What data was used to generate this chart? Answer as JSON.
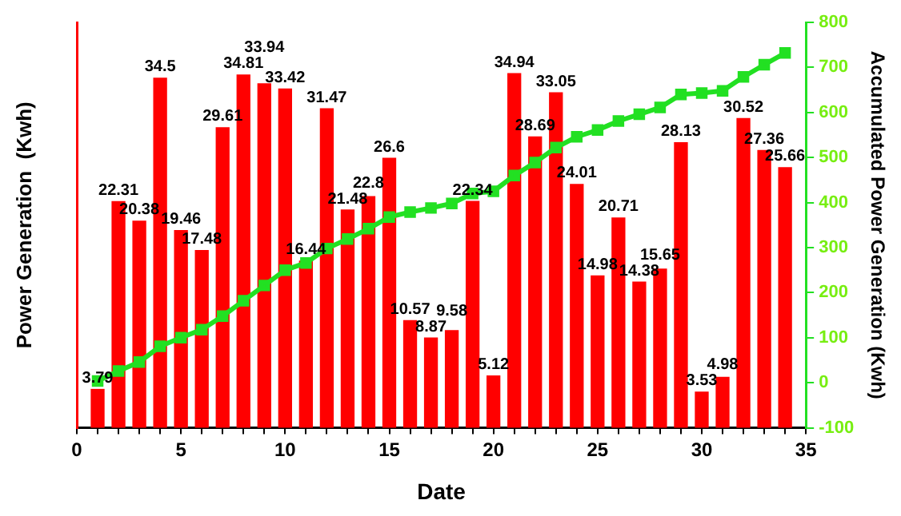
{
  "chart_data": {
    "type": "bar",
    "xlabel": "Date",
    "ylabel": "Power Generation  (Kwh)",
    "y2label": "Accumulated Power Generation (Kwh)",
    "x": [
      1,
      2,
      3,
      4,
      5,
      6,
      7,
      8,
      9,
      10,
      11,
      12,
      13,
      14,
      15,
      16,
      17,
      18,
      19,
      20,
      21,
      22,
      23,
      24,
      25,
      26,
      27,
      28,
      29,
      30,
      31,
      32,
      33,
      34
    ],
    "series": [
      {
        "color": "#ff0000",
        "values": [
          3.79,
          22.31,
          20.38,
          34.5,
          19.46,
          17.48,
          29.61,
          34.81,
          33.94,
          33.42,
          16.44,
          31.47,
          21.48,
          22.8,
          26.6,
          10.57,
          8.87,
          9.58,
          22.34,
          5.12,
          34.94,
          28.69,
          33.05,
          24.01,
          14.98,
          20.71,
          14.38,
          15.65,
          28.13,
          3.53,
          4.98,
          30.52,
          27.36,
          25.66
        ],
        "value_labels": [
          "3.79",
          "22.31",
          "20.38",
          "34.5",
          "19.46",
          "17.48",
          "29.61",
          "34.81",
          "33.94",
          "33.42",
          "16.44",
          "31.47",
          "21.48",
          "22.8",
          "26.6",
          "10.57",
          "8.87",
          "9.58",
          "22.34",
          "5.12",
          "34.94",
          "28.69",
          "33.05",
          "24.01",
          "14.98",
          "20.71",
          "14.38",
          "15.65",
          "28.13",
          "3.53",
          "4.98",
          "30.52",
          "27.36",
          "25.66"
        ]
      },
      {
        "type": "line",
        "axis": "y2",
        "color": "#22e022",
        "values": [
          4,
          26,
          46,
          81,
          100,
          118,
          148,
          182,
          216,
          250,
          266,
          298,
          319,
          342,
          368,
          379,
          388,
          398,
          420,
          425,
          460,
          489,
          522,
          546,
          561,
          581,
          596,
          611,
          640,
          643,
          648,
          679,
          706,
          732
        ]
      }
    ],
    "xlim": [
      0,
      35
    ],
    "xticks": [
      0,
      {
        "value": 1,
        "label": null
      },
      {
        "value": 2,
        "label": null
      },
      {
        "value": 3,
        "label": null
      },
      {
        "value": 4,
        "label": null
      },
      5,
      {
        "value": 6,
        "label": null
      },
      {
        "value": 7,
        "label": null
      },
      {
        "value": 8,
        "label": null
      },
      {
        "value": 9,
        "label": null
      },
      10,
      {
        "value": 11,
        "label": null
      },
      {
        "value": 12,
        "label": null
      },
      {
        "value": 13,
        "label": null
      },
      {
        "value": 14,
        "label": null
      },
      15,
      {
        "value": 16,
        "label": null
      },
      {
        "value": 17,
        "label": null
      },
      {
        "value": 18,
        "label": null
      },
      {
        "value": 19,
        "label": null
      },
      20,
      {
        "value": 21,
        "label": null
      },
      {
        "value": 22,
        "label": null
      },
      {
        "value": 23,
        "label": null
      },
      {
        "value": 24,
        "label": null
      },
      25,
      {
        "value": 26,
        "label": null
      },
      {
        "value": 27,
        "label": null
      },
      {
        "value": 28,
        "label": null
      },
      {
        "value": 29,
        "label": null
      },
      30,
      {
        "value": 31,
        "label": null
      },
      {
        "value": 32,
        "label": null
      },
      {
        "value": 33,
        "label": null
      },
      {
        "value": 34,
        "label": null
      },
      35
    ],
    "ylim": [
      0,
      40
    ],
    "y2lim": [
      -100,
      800
    ],
    "y2ticks": [
      -100,
      0,
      100,
      200,
      300,
      400,
      500,
      600,
      700,
      800
    ],
    "marker": "square",
    "grid": false,
    "legend": false
  }
}
